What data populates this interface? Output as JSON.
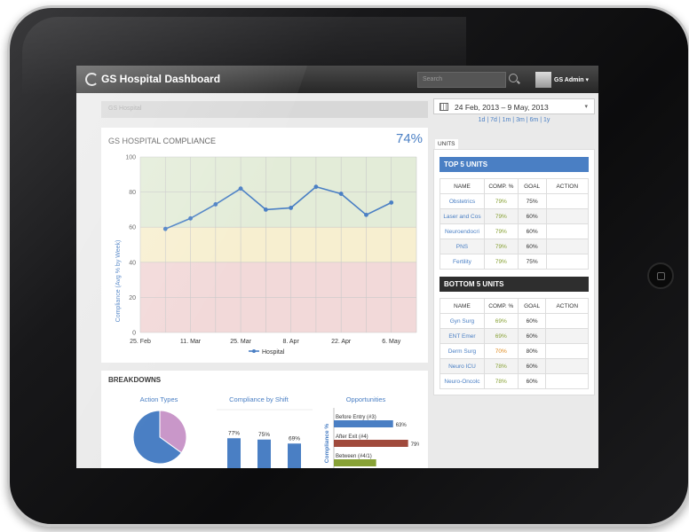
{
  "app": {
    "title": "GS Hospital Dashboard"
  },
  "header": {
    "search_placeholder": "Search",
    "user": "GS Admin"
  },
  "breadcrumb": "GS Hospital",
  "compliance": {
    "title": "GS HOSPITAL COMPLIANCE",
    "value": "74%",
    "ylabel": "Compliance (Avg % by Week)"
  },
  "chart_data": [
    {
      "type": "line",
      "x": [
        "25. Feb",
        "4. Mar",
        "11. Mar",
        "18. Mar",
        "25. Mar",
        "1. Apr",
        "8. Apr",
        "15. Apr",
        "22. Apr",
        "29. Apr",
        "6. May",
        "13. May"
      ],
      "x_tick_labels": [
        "25. Feb",
        "11. Mar",
        "25. Mar",
        "8. Apr",
        "22. Apr",
        "6. May"
      ],
      "series": [
        {
          "name": "Hospital",
          "values": [
            null,
            59,
            65,
            73,
            82,
            70,
            71,
            83,
            79,
            67,
            74,
            null
          ]
        }
      ],
      "yticks": [
        0,
        20,
        40,
        60,
        80,
        100
      ],
      "ylim": [
        0,
        100
      ],
      "ylabel": "Compliance (Avg % by Week)",
      "bands": [
        {
          "from": 0,
          "to": 40,
          "color": "#f2d9d9"
        },
        {
          "from": 40,
          "to": 60,
          "color": "#f7efd0"
        },
        {
          "from": 60,
          "to": 100,
          "color": "#e3ecd8"
        }
      ],
      "legend": "bottom"
    },
    {
      "type": "pie",
      "title": "Action Types",
      "slices": [
        {
          "value": 35,
          "color": "#c997c9"
        },
        {
          "value": 65,
          "color": "#4a7fc4"
        }
      ]
    },
    {
      "type": "bar",
      "title": "Compliance by Shift",
      "values": [
        77,
        75,
        69
      ],
      "data_labels": [
        "77%",
        "75%",
        "69%"
      ]
    },
    {
      "type": "bar",
      "orientation": "horizontal",
      "title": "Opportunities",
      "ylabel": "Compliance %",
      "categories": [
        "Before Entry (#3)",
        "After Exit (#4)",
        "Between (#4/1)"
      ],
      "values": [
        63,
        79,
        45
      ],
      "data_labels": [
        "63%",
        "79%",
        ""
      ],
      "colors": [
        "#4a7fc4",
        "#a04a3c",
        "#88a236"
      ]
    }
  ],
  "date_range": {
    "label": "24 Feb, 2013 – 9 May, 2013",
    "options": [
      "1d",
      "7d",
      "1m",
      "3m",
      "6m",
      "1y"
    ]
  },
  "units_tab": "UNITS",
  "top5": {
    "title": "TOP 5 UNITS",
    "color": "#4a7fc4",
    "headers": [
      "NAME",
      "COMP. %",
      "GOAL",
      "ACTION"
    ],
    "rows": [
      {
        "name": "Obstetrics",
        "comp": "79%",
        "goal": "75%"
      },
      {
        "name": "Laser and Cos",
        "comp": "79%",
        "goal": "60%"
      },
      {
        "name": "Neuroendocri",
        "comp": "79%",
        "goal": "60%"
      },
      {
        "name": "PNS",
        "comp": "79%",
        "goal": "60%"
      },
      {
        "name": "Fertility",
        "comp": "79%",
        "goal": "75%"
      }
    ]
  },
  "bottom5": {
    "title": "BOTTOM 5 UNITS",
    "color": "#2e2e2e",
    "headers": [
      "NAME",
      "COMP. %",
      "GOAL",
      "ACTION"
    ],
    "rows": [
      {
        "name": "Gyn Surg",
        "comp": "69%",
        "goal": "60%"
      },
      {
        "name": "ENT Emer",
        "comp": "69%",
        "goal": "60%"
      },
      {
        "name": "Derm Surg",
        "comp": "70%",
        "goal": "80%"
      },
      {
        "name": "Neuro ICU",
        "comp": "78%",
        "goal": "60%"
      },
      {
        "name": "Neuro-Oncolc",
        "comp": "78%",
        "goal": "60%"
      }
    ]
  },
  "breakdowns": {
    "title": "BREAKDOWNS"
  }
}
